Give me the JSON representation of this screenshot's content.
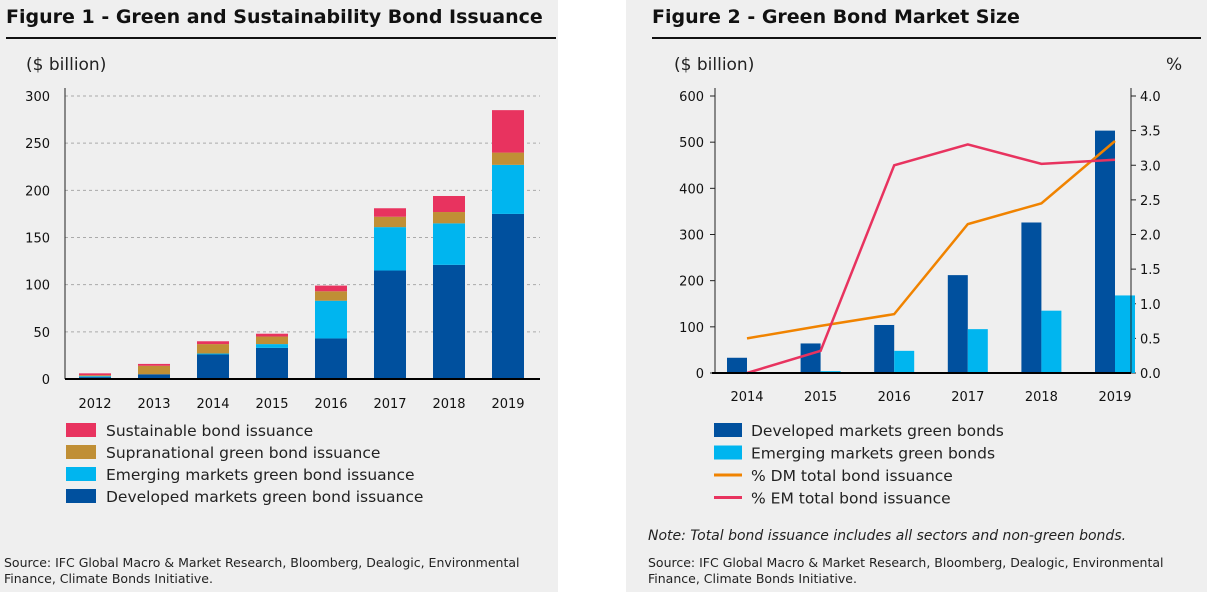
{
  "chart_data": [
    {
      "type": "bar",
      "stacked": true,
      "title": "Figure 1 - Green and Sustainability Bond Issuance",
      "ylabel": "($ billion)",
      "ylim": [
        0,
        300
      ],
      "yticks": [
        0,
        50,
        100,
        150,
        200,
        250,
        300
      ],
      "grid": "horizontal-dashed",
      "legend_placement": "bottom",
      "categories": [
        "2012",
        "2013",
        "2014",
        "2015",
        "2016",
        "2017",
        "2018",
        "2019"
      ],
      "series": [
        {
          "name": "Developed markets green bond issuance",
          "color": "#00509e",
          "values": [
            2,
            5,
            26,
            33,
            43,
            115,
            121,
            175
          ]
        },
        {
          "name": "Emerging markets green bond issuance",
          "color": "#00b5ef",
          "values": [
            1,
            0,
            1,
            4,
            40,
            46,
            44,
            52
          ]
        },
        {
          "name": "Supranational green bond issuance",
          "color": "#c08f35",
          "values": [
            1,
            9,
            10,
            8,
            10,
            11,
            12,
            13
          ]
        },
        {
          "name": "Sustainable bond issuance",
          "color": "#e8335f",
          "values": [
            2,
            2,
            3,
            3,
            6,
            9,
            17,
            45
          ]
        }
      ],
      "legend_order": [
        3,
        2,
        1,
        0
      ],
      "source": "Source: IFC Global Macro & Market Research, Bloomberg, Dealogic, Environmental Finance, Climate Bonds Initiative."
    },
    {
      "type": "bar+line",
      "title": "Figure 2 - Green Bond Market Size",
      "ylabel": "($ billion)",
      "y2label": "%",
      "ylim": [
        0,
        600
      ],
      "y2lim": [
        0,
        4.0
      ],
      "yticks": [
        0,
        100,
        200,
        300,
        400,
        500,
        600
      ],
      "y2ticks": [
        "0.0",
        "0.5",
        "1.0",
        "1.5",
        "2.0",
        "2.5",
        "3.0",
        "3.5",
        "4.0"
      ],
      "grid": false,
      "legend_placement": "bottom",
      "categories": [
        "2014",
        "2015",
        "2016",
        "2017",
        "2018",
        "2019"
      ],
      "series": [
        {
          "name": "Developed markets green bonds",
          "kind": "bar",
          "axis": "left",
          "color": "#00509e",
          "values": [
            33,
            64,
            104,
            212,
            326,
            525
          ]
        },
        {
          "name": "Emerging markets green bonds",
          "kind": "bar",
          "axis": "left",
          "color": "#00b5ef",
          "values": [
            0,
            4,
            48,
            95,
            135,
            168
          ]
        },
        {
          "name": "% DM total bond issuance",
          "kind": "line",
          "axis": "right",
          "color": "#f08300",
          "values": [
            0.5,
            0.68,
            0.85,
            2.15,
            2.45,
            3.35
          ]
        },
        {
          "name": "% EM total bond issuance",
          "kind": "line",
          "axis": "right",
          "color": "#e8335f",
          "values": [
            0.0,
            0.32,
            3.0,
            3.3,
            3.02,
            3.08
          ]
        }
      ],
      "note": "Note: Total bond issuance includes all sectors and non-green bonds.",
      "source": "Source: IFC Global Macro & Market Research, Bloomberg, Dealogic, Environmental Finance, Climate Bonds Initiative."
    }
  ]
}
